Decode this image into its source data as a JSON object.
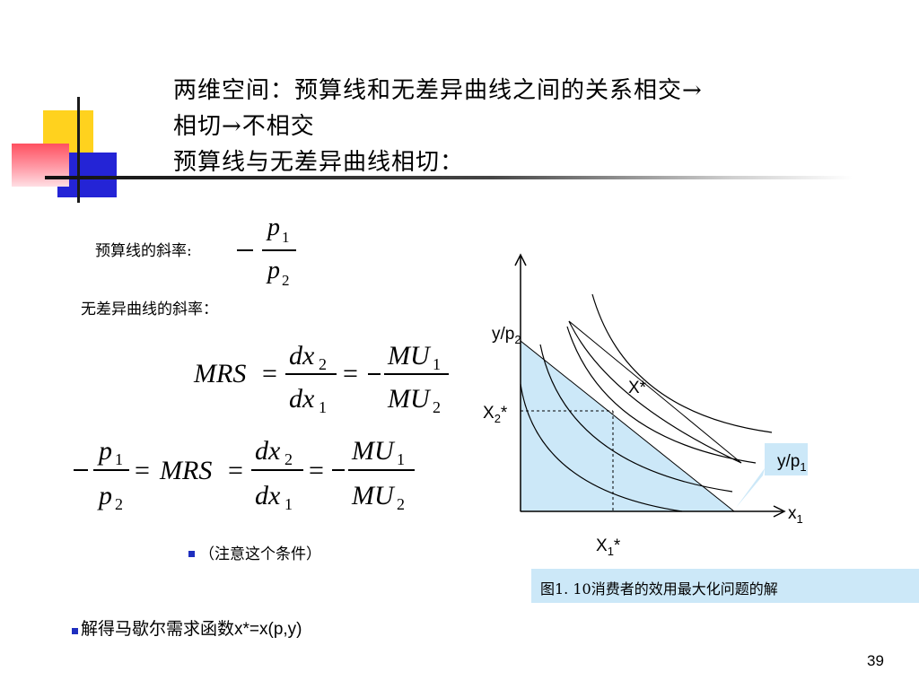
{
  "title": {
    "line1": "两维空间：预算线和无差异曲线之间的关系相交→",
    "line2": "相切→不相交",
    "line3": "预算线与无差异曲线相切："
  },
  "labels": {
    "budget_slope": "预算线的斜率:",
    "indiff_slope": "无差异曲线的斜率："
  },
  "bullets": {
    "note": "（注意这个条件）",
    "solve_prefix": "解得马歇尔需求函数",
    "solve_suffix": "x*=x(p,y)"
  },
  "figure": {
    "y_axis_label": "y/p",
    "y_axis_sub": "2",
    "x_axis_label": "x",
    "x_axis_sub": "1",
    "x2_star_label": "X",
    "x2_star_sub": "2",
    "x2_star_suffix": "*",
    "x1_star_label": "X",
    "x1_star_sub": "1",
    "x1_star_suffix": "*",
    "optimum_label": "X*",
    "callout_label": "y/p",
    "callout_sub": "1",
    "caption": "图1. 10消费者的效用最大化问题的解"
  },
  "colors": {
    "budget_fill": "#cce8f8",
    "red_region": "#ff0000",
    "bullet": "#1f2fbf",
    "caption_bg": "#cce8f8"
  },
  "page_number": "39"
}
